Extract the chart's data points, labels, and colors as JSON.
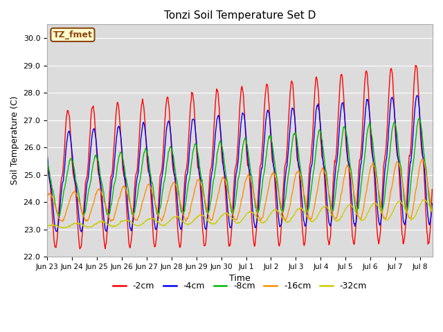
{
  "title": "Tonzi Soil Temperature Set D",
  "xlabel": "Time",
  "ylabel": "Soil Temperature (C)",
  "ylim": [
    22.0,
    30.5
  ],
  "annotation": "TZ_fmet",
  "annotation_color": "#8B4513",
  "annotation_bg": "#FFFFCC",
  "bg_color": "#DCDCDC",
  "series_colors": [
    "#FF0000",
    "#0000EE",
    "#00BB00",
    "#FF8C00",
    "#CCCC00"
  ],
  "series_labels": [
    "-2cm",
    "-4cm",
    "-8cm",
    "-16cm",
    "-32cm"
  ],
  "tick_dates": [
    "Jun 23",
    "Jun 24",
    "Jun 25",
    "Jun 26",
    "Jun 27",
    "Jun 28",
    "Jun 29",
    "Jun 30",
    "Jul 1",
    "Jul 2",
    "Jul 3",
    "Jul 4",
    "Jul 5",
    "Jul 6",
    "Jul 7",
    "Jul 8"
  ],
  "yticks": [
    22.0,
    23.0,
    24.0,
    25.0,
    26.0,
    27.0,
    28.0,
    29.0,
    30.0
  ],
  "linewidth": 1.0
}
